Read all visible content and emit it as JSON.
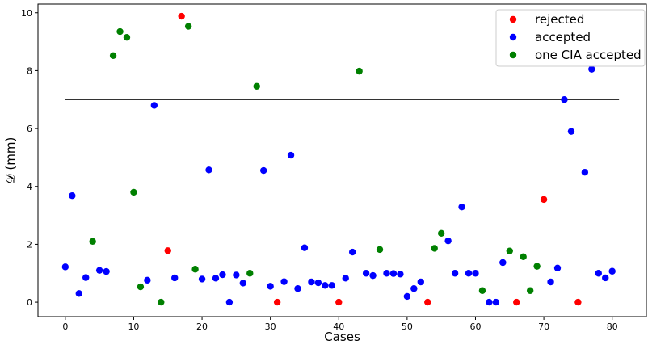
{
  "chart_data": {
    "type": "scatter",
    "xlabel": "Cases",
    "ylabel": "𝒟 (mm)",
    "xlim": [
      -4,
      85
    ],
    "ylim": [
      -0.5,
      10.3
    ],
    "xticks": [
      0,
      10,
      20,
      30,
      40,
      50,
      60,
      70,
      80
    ],
    "yticks": [
      0,
      2,
      4,
      6,
      8,
      10
    ],
    "legend_position": "top-right",
    "threshold": {
      "y": 7,
      "x_start": 0,
      "x_end": 81,
      "color": "#333333"
    },
    "series": [
      {
        "name": "rejected",
        "color": "#ff0000",
        "x": [
          15,
          17,
          31,
          40,
          53,
          66,
          70,
          75
        ],
        "y": [
          1.78,
          9.88,
          0.0,
          0.0,
          0.0,
          0.0,
          3.55,
          0.0
        ]
      },
      {
        "name": "accepted",
        "color": "#0000ff",
        "x": [
          0,
          1,
          2,
          3,
          5,
          6,
          12,
          13,
          16,
          20,
          21,
          22,
          23,
          24,
          25,
          26,
          29,
          30,
          32,
          33,
          34,
          35,
          36,
          37,
          38,
          39,
          41,
          42,
          44,
          45,
          47,
          48,
          49,
          50,
          51,
          52,
          56,
          57,
          58,
          59,
          60,
          62,
          63,
          64,
          71,
          72,
          73,
          74,
          76,
          77,
          78,
          79,
          80
        ],
        "y": [
          1.22,
          3.68,
          0.3,
          0.85,
          1.1,
          1.06,
          0.76,
          6.8,
          0.84,
          0.8,
          4.57,
          0.83,
          0.95,
          0.0,
          0.94,
          0.66,
          4.55,
          0.55,
          0.71,
          5.08,
          0.47,
          1.88,
          0.7,
          0.67,
          0.58,
          0.58,
          0.83,
          1.73,
          1.0,
          0.92,
          1.0,
          0.99,
          0.97,
          0.2,
          0.47,
          0.7,
          2.12,
          1.0,
          3.29,
          1.0,
          1.0,
          0.0,
          0.0,
          1.37,
          0.7,
          1.18,
          7.0,
          5.9,
          4.49,
          8.05,
          1.0,
          0.84,
          1.07
        ]
      },
      {
        "name": "one CIA accepted",
        "color": "#008000",
        "x": [
          4,
          7,
          8,
          9,
          10,
          11,
          14,
          18,
          19,
          27,
          28,
          43,
          46,
          54,
          55,
          61,
          65,
          67,
          68,
          69
        ],
        "y": [
          2.1,
          8.52,
          9.35,
          9.15,
          3.8,
          0.53,
          0.0,
          9.53,
          1.14,
          1.0,
          7.46,
          7.98,
          1.82,
          1.86,
          2.38,
          0.4,
          1.77,
          1.57,
          0.4,
          1.24
        ]
      }
    ]
  }
}
